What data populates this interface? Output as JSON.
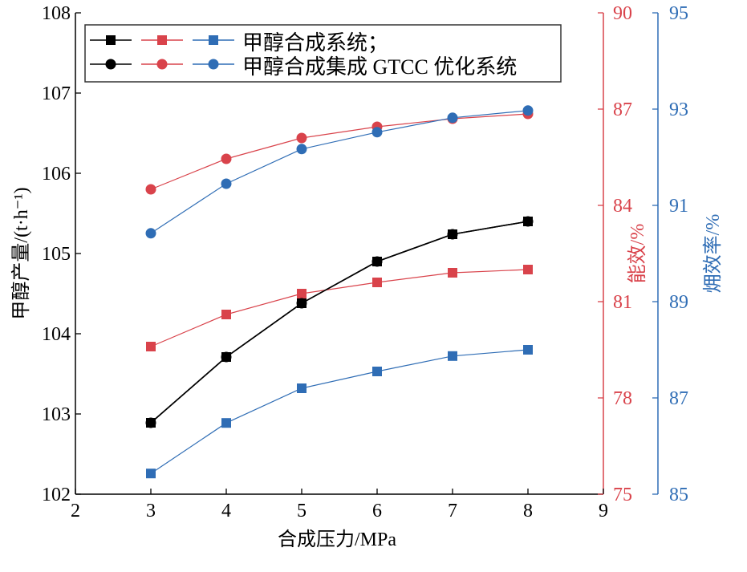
{
  "chart_data": {
    "type": "line",
    "xlabel": "合成压力/MPa",
    "x_ticks": [
      "2",
      "3",
      "4",
      "5",
      "6",
      "7",
      "8",
      "9"
    ],
    "xlim": [
      2,
      9
    ],
    "x": [
      3,
      4,
      5,
      6,
      7,
      8
    ],
    "axes": {
      "left": {
        "label": "甲醇产量/(t·h⁻¹)",
        "ylim": [
          102,
          108
        ],
        "ticks": [
          "102",
          "103",
          "104",
          "105",
          "106",
          "107",
          "108"
        ],
        "color": "#000000"
      },
      "right1": {
        "label": "能效/%",
        "ylim": [
          75,
          90
        ],
        "ticks": [
          "75",
          "78",
          "81",
          "84",
          "87",
          "90"
        ],
        "color": "#d9434b"
      },
      "right2": {
        "label": "㶲效率/%",
        "ylim": [
          85,
          95
        ],
        "ticks": [
          "85",
          "87",
          "89",
          "91",
          "93",
          "95"
        ],
        "color": "#2f6db5"
      }
    },
    "legend": {
      "placement": "top-left",
      "entries": [
        "甲醇合成系统；",
        "甲醇合成集成 GTCC 优化系统"
      ]
    },
    "series": [
      {
        "name": "甲醇合成系统 - 甲醇产量",
        "axis": "left",
        "marker": "square",
        "color": "#000000",
        "values": [
          102.89,
          103.71,
          104.38,
          104.9,
          105.24,
          105.4
        ]
      },
      {
        "name": "甲醇合成系统 - 能效",
        "axis": "right1",
        "marker": "square",
        "color": "#d9434b",
        "values": [
          79.6,
          80.6,
          81.25,
          81.6,
          81.9,
          82.0
        ]
      },
      {
        "name": "甲醇合成系统 - 㶲效率",
        "axis": "right2",
        "marker": "square",
        "color": "#2f6db5",
        "values": [
          85.43,
          86.48,
          87.2,
          87.55,
          87.87,
          88.0
        ]
      },
      {
        "name": "甲醇合成集成GTCC优化系统 - 甲醇产量",
        "axis": "left",
        "marker": "circle",
        "color": "#000000",
        "values": [
          102.89,
          103.71,
          104.38,
          104.9,
          105.24,
          105.4
        ]
      },
      {
        "name": "甲醇合成集成GTCC优化系统 - 能效",
        "axis": "right1",
        "marker": "circle",
        "color": "#d9434b",
        "values": [
          84.5,
          85.45,
          86.1,
          86.45,
          86.7,
          86.85
        ]
      },
      {
        "name": "甲醇合成集成GTCC优化系统 - 㶲效率",
        "axis": "right2",
        "marker": "circle",
        "color": "#2f6db5",
        "values": [
          90.42,
          91.45,
          92.17,
          92.52,
          92.82,
          92.97
        ]
      }
    ]
  }
}
